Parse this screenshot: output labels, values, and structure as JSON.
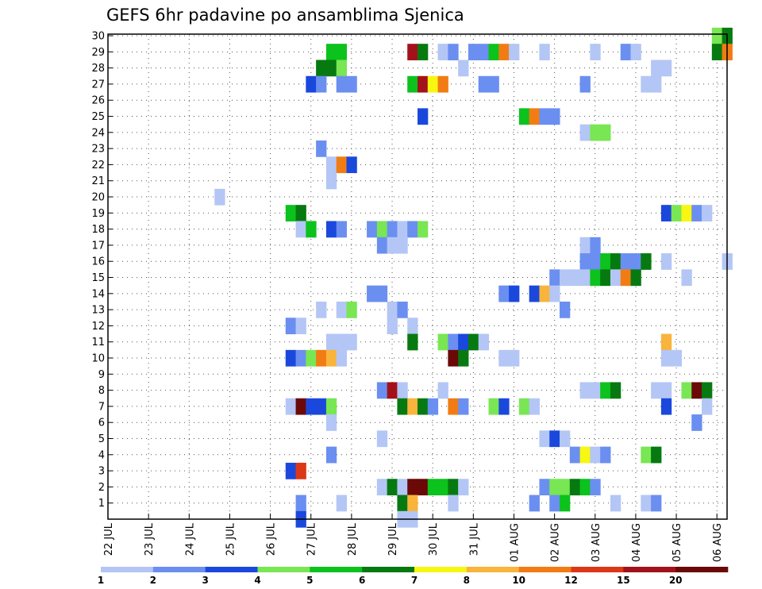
{
  "chart_data": {
    "type": "heatmap",
    "title": "GEFS 6hr padavine po ansamblima Sjenica",
    "xlabel": "",
    "ylabel": "",
    "x_tick_labels": [
      "22 JUL",
      "23 JUL",
      "24 JUL",
      "25 JUL",
      "26 JUL",
      "27 JUL",
      "28 JUL",
      "29 JUL",
      "30 JUL",
      "31 JUL",
      "01 AUG",
      "02 AUG",
      "03 AUG",
      "04 AUG",
      "05 AUG",
      "06 AUG"
    ],
    "x_range_days": [
      0,
      15.25
    ],
    "step_hours": 6,
    "y_tick_labels": [
      "1",
      "2",
      "3",
      "4",
      "5",
      "6",
      "7",
      "8",
      "9",
      "10",
      "11",
      "12",
      "13",
      "14",
      "15",
      "16",
      "17",
      "18",
      "19",
      "20",
      "21",
      "22",
      "23",
      "24",
      "25",
      "26",
      "27",
      "28",
      "29",
      "30"
    ],
    "y_range": [
      0,
      30
    ],
    "grid": true,
    "colorbar": {
      "position": "bottom",
      "levels": [
        "1",
        "2",
        "3",
        "4",
        "5",
        "6",
        "7",
        "8",
        "10",
        "12",
        "15",
        "20"
      ],
      "colors": [
        "#b4c6f5",
        "#6b8ff0",
        "#1b48dc",
        "#79e653",
        "#0cc21d",
        "#067a10",
        "#f7f711",
        "#f8b43b",
        "#f27c14",
        "#dc3717",
        "#a3121a",
        "#6b0808"
      ]
    },
    "members": [
      {
        "member": 30,
        "cells": [
          [
            15,
            3
          ],
          [
            15.25,
            5
          ]
        ]
      },
      {
        "member": 29,
        "cells": [
          [
            5.5,
            4
          ],
          [
            5.75,
            4
          ],
          [
            7.5,
            10
          ],
          [
            7.75,
            5
          ],
          [
            8.25,
            0
          ],
          [
            8.5,
            1
          ],
          [
            9,
            1
          ],
          [
            9.25,
            1
          ],
          [
            9.5,
            4
          ],
          [
            9.75,
            8
          ],
          [
            10,
            0
          ],
          [
            10.75,
            0
          ],
          [
            12,
            0
          ],
          [
            12.75,
            1
          ],
          [
            13,
            0
          ],
          [
            15,
            5
          ],
          [
            15.25,
            8
          ]
        ]
      },
      {
        "member": 28,
        "cells": [
          [
            5.25,
            5
          ],
          [
            5.5,
            5
          ],
          [
            5.75,
            3
          ],
          [
            8.75,
            0
          ],
          [
            13.5,
            0
          ],
          [
            13.75,
            0
          ]
        ]
      },
      {
        "member": 27,
        "cells": [
          [
            5,
            2
          ],
          [
            5.25,
            1
          ],
          [
            5.75,
            1
          ],
          [
            6,
            1
          ],
          [
            7.5,
            4
          ],
          [
            7.75,
            10
          ],
          [
            8,
            6
          ],
          [
            8.25,
            8
          ],
          [
            9.25,
            1
          ],
          [
            9.5,
            1
          ],
          [
            11.75,
            1
          ],
          [
            13.25,
            0
          ],
          [
            13.5,
            0
          ]
        ]
      },
      {
        "member": 25,
        "cells": [
          [
            7.75,
            2
          ],
          [
            10.25,
            4
          ],
          [
            10.5,
            8
          ],
          [
            10.75,
            1
          ],
          [
            11,
            1
          ]
        ]
      },
      {
        "member": 24,
        "cells": [
          [
            11.75,
            0
          ],
          [
            12,
            3
          ],
          [
            12.25,
            3
          ]
        ]
      },
      {
        "member": 23,
        "cells": [
          [
            5.25,
            1
          ]
        ]
      },
      {
        "member": 22,
        "cells": [
          [
            5.5,
            0
          ],
          [
            5.75,
            8
          ],
          [
            6,
            2
          ]
        ]
      },
      {
        "member": 21,
        "cells": [
          [
            5.5,
            0
          ]
        ]
      },
      {
        "member": 20,
        "cells": [
          [
            2.75,
            0
          ]
        ]
      },
      {
        "member": 19,
        "cells": [
          [
            4.5,
            4
          ],
          [
            4.75,
            5
          ],
          [
            13.75,
            2
          ],
          [
            14,
            3
          ],
          [
            14.25,
            6
          ],
          [
            14.5,
            1
          ],
          [
            14.75,
            0
          ]
        ]
      },
      {
        "member": 18,
        "cells": [
          [
            4.75,
            0
          ],
          [
            5,
            4
          ],
          [
            5.5,
            2
          ],
          [
            5.75,
            1
          ],
          [
            6.5,
            1
          ],
          [
            6.75,
            3
          ],
          [
            7,
            1
          ],
          [
            7.25,
            0
          ],
          [
            7.5,
            1
          ],
          [
            7.75,
            3
          ]
        ]
      },
      {
        "member": 17,
        "cells": [
          [
            6.75,
            1
          ],
          [
            7,
            0
          ],
          [
            7.25,
            0
          ],
          [
            11.75,
            0
          ],
          [
            12,
            1
          ]
        ]
      },
      {
        "member": 16,
        "cells": [
          [
            11.75,
            1
          ],
          [
            12,
            1
          ],
          [
            12.25,
            4
          ],
          [
            12.5,
            5
          ],
          [
            12.75,
            1
          ],
          [
            13,
            1
          ],
          [
            13.25,
            5
          ],
          [
            13.75,
            0
          ],
          [
            15.25,
            0
          ]
        ]
      },
      {
        "member": 15,
        "cells": [
          [
            11,
            1
          ],
          [
            11.25,
            0
          ],
          [
            11.5,
            0
          ],
          [
            11.75,
            0
          ],
          [
            12,
            4
          ],
          [
            12.25,
            5
          ],
          [
            12.5,
            0
          ],
          [
            12.75,
            8
          ],
          [
            13,
            5
          ],
          [
            14.25,
            0
          ]
        ]
      },
      {
        "member": 14,
        "cells": [
          [
            6.5,
            1
          ],
          [
            6.75,
            1
          ],
          [
            9.75,
            1
          ],
          [
            10,
            2
          ],
          [
            10.5,
            2
          ],
          [
            10.75,
            7
          ],
          [
            11,
            0
          ]
        ]
      },
      {
        "member": 13,
        "cells": [
          [
            5.25,
            0
          ],
          [
            5.75,
            0
          ],
          [
            6,
            3
          ],
          [
            7,
            0
          ],
          [
            7.25,
            1
          ],
          [
            11.25,
            1
          ]
        ]
      },
      {
        "member": 12,
        "cells": [
          [
            4.5,
            1
          ],
          [
            4.75,
            0
          ],
          [
            7,
            0
          ],
          [
            7.5,
            0
          ]
        ]
      },
      {
        "member": 11,
        "cells": [
          [
            5.5,
            0
          ],
          [
            5.75,
            0
          ],
          [
            6,
            0
          ],
          [
            7.5,
            5
          ],
          [
            8.25,
            3
          ],
          [
            8.5,
            1
          ],
          [
            8.75,
            2
          ],
          [
            9,
            5
          ],
          [
            9.25,
            0
          ],
          [
            13.75,
            7
          ]
        ]
      },
      {
        "member": 10,
        "cells": [
          [
            4.5,
            2
          ],
          [
            4.75,
            1
          ],
          [
            5,
            3
          ],
          [
            5.25,
            8
          ],
          [
            5.5,
            7
          ],
          [
            5.75,
            0
          ],
          [
            8.5,
            11
          ],
          [
            8.75,
            5
          ],
          [
            9.75,
            0
          ],
          [
            10,
            0
          ],
          [
            13.75,
            0
          ],
          [
            14,
            0
          ]
        ]
      },
      {
        "member": 8,
        "cells": [
          [
            6.75,
            1
          ],
          [
            7,
            10
          ],
          [
            7.25,
            0
          ],
          [
            8.25,
            0
          ],
          [
            11.75,
            0
          ],
          [
            12,
            0
          ],
          [
            12.25,
            4
          ],
          [
            12.5,
            5
          ],
          [
            13.5,
            0
          ],
          [
            13.75,
            0
          ],
          [
            14.25,
            3
          ],
          [
            14.5,
            11
          ],
          [
            14.75,
            5
          ]
        ]
      },
      {
        "member": 7,
        "cells": [
          [
            4.5,
            0
          ],
          [
            4.75,
            11
          ],
          [
            5,
            2
          ],
          [
            5.25,
            2
          ],
          [
            5.5,
            3
          ],
          [
            7.25,
            5
          ],
          [
            7.5,
            7
          ],
          [
            7.75,
            5
          ],
          [
            8,
            1
          ],
          [
            8.5,
            8
          ],
          [
            8.75,
            1
          ],
          [
            9.5,
            3
          ],
          [
            9.75,
            2
          ],
          [
            10.25,
            3
          ],
          [
            10.5,
            0
          ],
          [
            13.75,
            2
          ],
          [
            14.75,
            0
          ]
        ]
      },
      {
        "member": 6,
        "cells": [
          [
            5.5,
            0
          ],
          [
            14.5,
            1
          ]
        ]
      },
      {
        "member": 5,
        "cells": [
          [
            6.75,
            0
          ],
          [
            10.75,
            0
          ],
          [
            11,
            2
          ],
          [
            11.25,
            0
          ]
        ]
      },
      {
        "member": 4,
        "cells": [
          [
            5.5,
            1
          ],
          [
            11.5,
            1
          ],
          [
            11.75,
            6
          ],
          [
            12,
            0
          ],
          [
            12.25,
            1
          ],
          [
            13.25,
            3
          ],
          [
            13.5,
            5
          ]
        ]
      },
      {
        "member": 3,
        "cells": [
          [
            4.5,
            2
          ],
          [
            4.75,
            9
          ]
        ]
      },
      {
        "member": 2,
        "cells": [
          [
            6.75,
            0
          ],
          [
            7,
            5
          ],
          [
            7.25,
            0
          ],
          [
            7.5,
            11
          ],
          [
            7.75,
            11
          ],
          [
            8,
            4
          ],
          [
            8.25,
            4
          ],
          [
            8.5,
            5
          ],
          [
            8.75,
            0
          ],
          [
            10.75,
            1
          ],
          [
            11,
            3
          ],
          [
            11.25,
            3
          ],
          [
            11.5,
            5
          ],
          [
            11.75,
            4
          ],
          [
            12,
            1
          ]
        ]
      },
      {
        "member": 1,
        "cells": [
          [
            4.75,
            1
          ],
          [
            5.75,
            0
          ],
          [
            7.25,
            5
          ],
          [
            7.5,
            7
          ],
          [
            8.5,
            0
          ],
          [
            10.5,
            1
          ],
          [
            11,
            1
          ],
          [
            11.25,
            4
          ],
          [
            12.5,
            0
          ],
          [
            13.25,
            0
          ],
          [
            13.5,
            1
          ]
        ]
      },
      {
        "member": 0,
        "cells": [
          [
            4.75,
            2
          ],
          [
            7.25,
            0
          ],
          [
            7.5,
            0
          ]
        ]
      }
    ]
  }
}
